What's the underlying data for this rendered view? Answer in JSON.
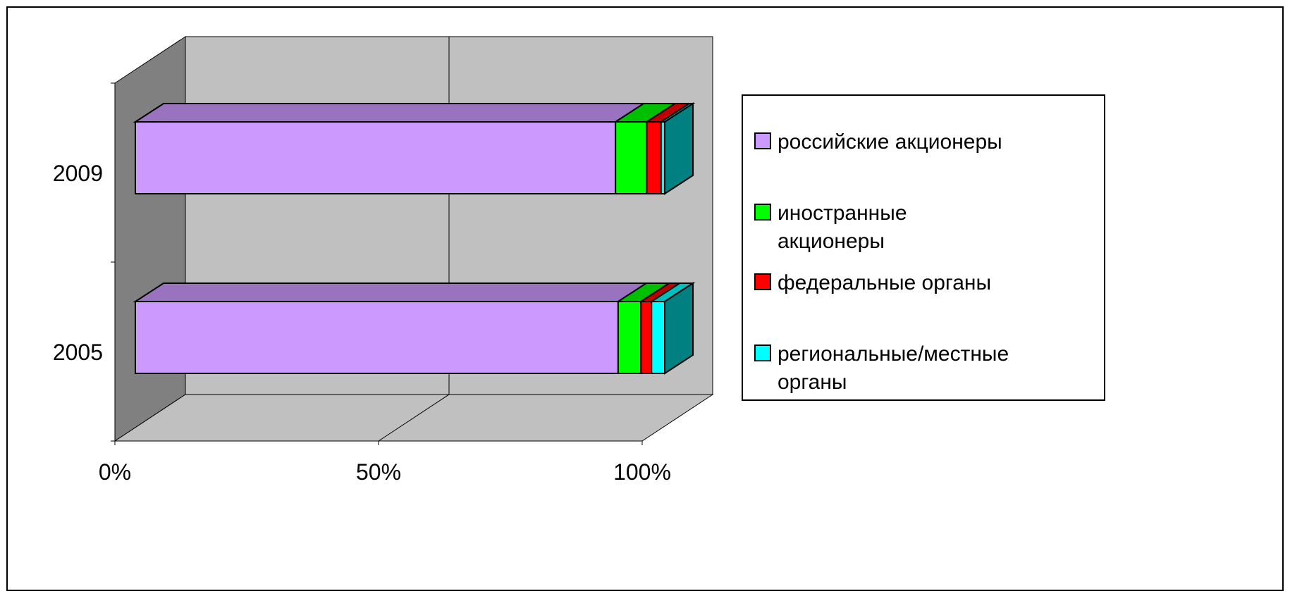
{
  "chart_data": {
    "type": "bar",
    "orientation": "horizontal",
    "stacked": "percent",
    "three_d": true,
    "categories": [
      "2009",
      "2005"
    ],
    "series": [
      {
        "name": "российские акционеры",
        "color": "#cc99ff",
        "values": [
          90.7,
          91.2
        ]
      },
      {
        "name": "иностранные акционеры",
        "color": "#00ff00",
        "values": [
          5.9,
          4.3
        ]
      },
      {
        "name": "федеральные органы",
        "color": "#ff0000",
        "values": [
          2.7,
          2.0
        ]
      },
      {
        "name": "региональные/местные органы",
        "color": "#00ffff",
        "values": [
          0.7,
          2.5
        ]
      }
    ],
    "xaxis": {
      "ticks": [
        "0%",
        "50%",
        "100%"
      ],
      "range": [
        0,
        100
      ]
    },
    "legend": {
      "placement": "right",
      "lines": [
        [
          "российские акционеры"
        ],
        [
          "иностранные",
          "акционеры"
        ],
        [
          "федеральные органы"
        ],
        [
          "региональные/местные",
          "органы"
        ]
      ]
    },
    "colors": {
      "wall_back": "#c0c0c0",
      "wall_side": "#808080",
      "cap": "#008080"
    }
  }
}
